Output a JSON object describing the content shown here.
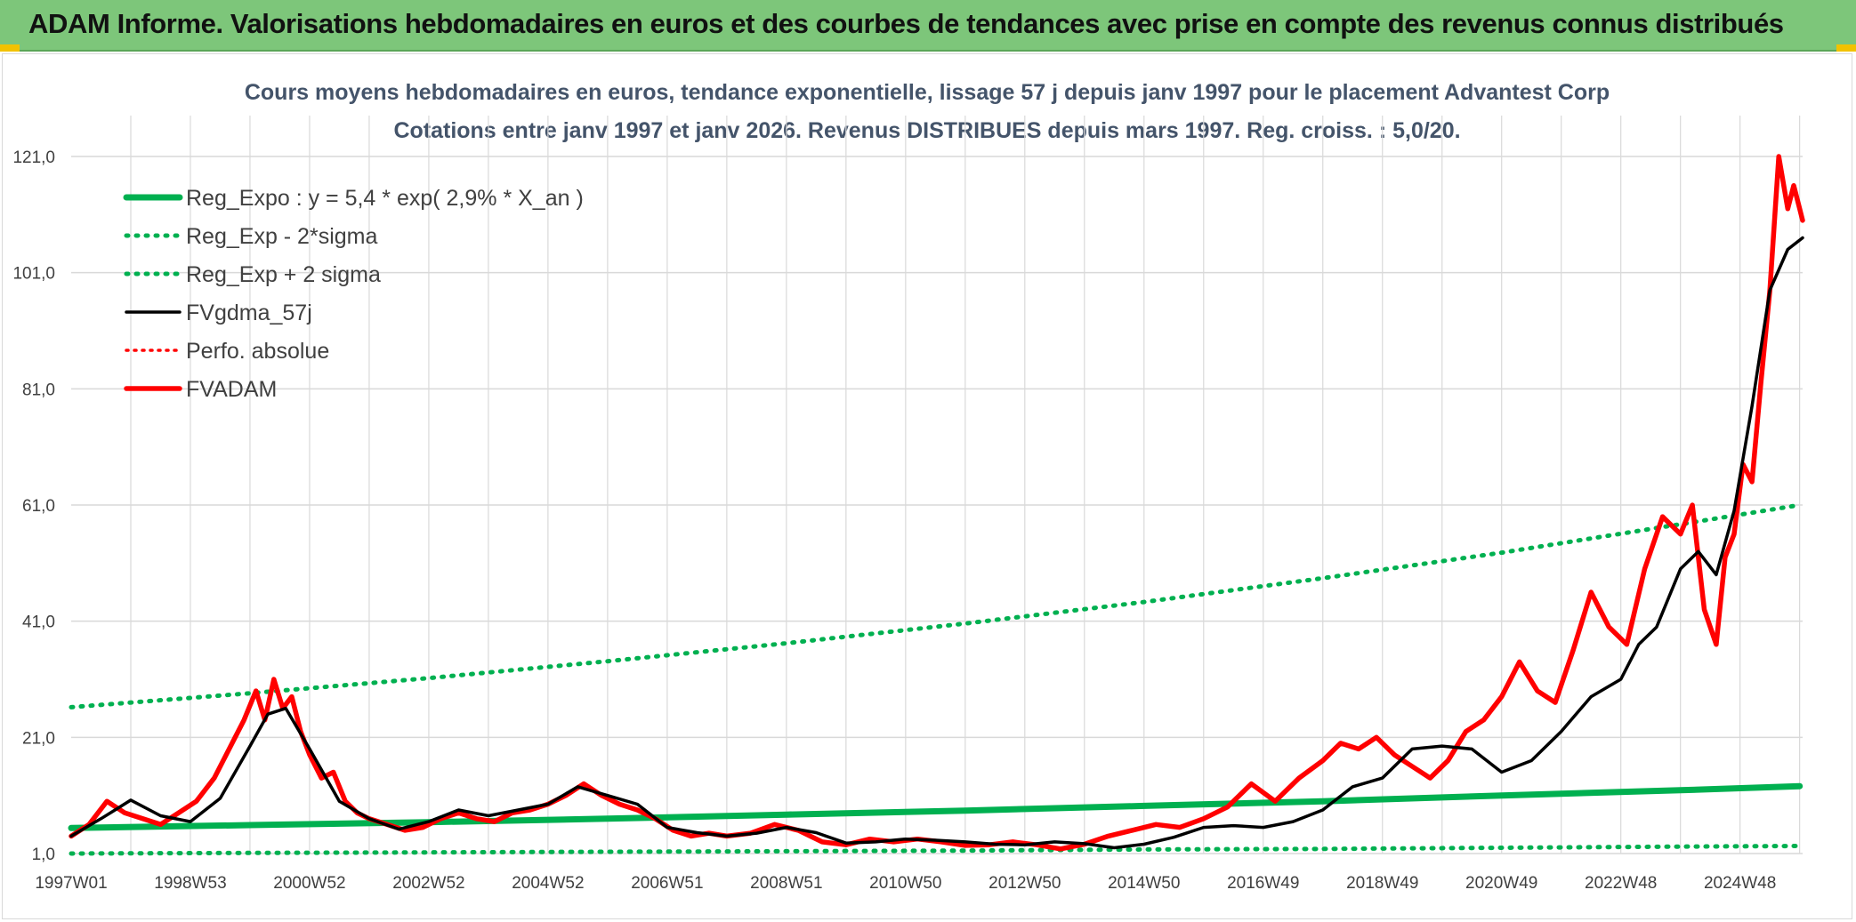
{
  "banner": {
    "title": "ADAM Informe. Valorisations hebdomadaires en euros et des courbes de tendances avec prise en compte des revenus connus distribués"
  },
  "colors": {
    "banner_bg": "#7dc67a",
    "reg_expo": "#00b050",
    "sigma_bands": "#00b050",
    "fvgdma": "#000000",
    "perfo": "#ff0000",
    "fvadam": "#ff0000",
    "grid": "#d9d9d9"
  },
  "chart_data": {
    "type": "line",
    "title": "Cours moyens hebdomadaires en euros, tendance exponentielle, lissage 57 j depuis janv 1997 pour le placement Advantest Corp",
    "subtitle": "Cotations entre janv 1997 et janv 2026. Revenus DISTRIBUES depuis mars 1997. Reg. croiss. : 5,0/20.",
    "legend_position": "top-left",
    "grid": true,
    "x_domain": [
      1997.0,
      2026.05
    ],
    "ylim": [
      1,
      121
    ],
    "y_ticks": [
      1,
      21,
      41,
      61,
      81,
      101,
      121
    ],
    "y_tick_labels": [
      "1,0",
      "21,0",
      "41,0",
      "61,0",
      "81,0",
      "101,0",
      "121,0"
    ],
    "x_ticks": [
      1997.0,
      1999.0,
      2001.0,
      2003.0,
      2005.0,
      2007.0,
      2009.0,
      2011.0,
      2013.0,
      2015.0,
      2017.0,
      2019.0,
      2021.0,
      2023.0,
      2025.0
    ],
    "x_tick_labels": [
      "1997W01",
      "1998W53",
      "2000W52",
      "2002W52",
      "2004W52",
      "2006W51",
      "2008W51",
      "2010W50",
      "2012W50",
      "2014W50",
      "2016W49",
      "2018W49",
      "2020W49",
      "2022W48",
      "2024W48"
    ],
    "series": [
      {
        "name": "Reg_Expo : y = 5,4 * exp( 2,9% *  X_an )",
        "style": "solid-thick",
        "x": [
          1997.0,
          2000.0,
          2003.0,
          2006.0,
          2009.0,
          2012.0,
          2015.0,
          2018.0,
          2021.0,
          2024.0,
          2026.0
        ],
        "y": [
          5.4,
          5.9,
          6.4,
          7.0,
          7.7,
          8.4,
          9.2,
          10.0,
          11.0,
          11.9,
          12.6
        ]
      },
      {
        "name": "Reg_Exp - 2*sigma",
        "style": "dotted",
        "x": [
          1997.0,
          2000.0,
          2003.0,
          2006.0,
          2009.0,
          2012.0,
          2015.0,
          2018.0,
          2021.0,
          2024.0,
          2026.0
        ],
        "y": [
          1.0,
          1.1,
          1.2,
          1.3,
          1.4,
          1.5,
          1.7,
          1.8,
          2.0,
          2.2,
          2.3
        ]
      },
      {
        "name": "Reg_Exp + 2 sigma",
        "style": "dotted",
        "x": [
          1997.0,
          2000.0,
          2003.0,
          2006.0,
          2009.0,
          2012.0,
          2015.0,
          2018.0,
          2021.0,
          2024.0,
          2026.0
        ],
        "y": [
          26.2,
          28.6,
          31.2,
          34.1,
          37.2,
          40.6,
          44.3,
          48.4,
          52.8,
          57.7,
          61.0
        ]
      },
      {
        "name": "FVgdma_57j",
        "style": "solid-medium",
        "x": [
          1997.0,
          1997.5,
          1998.0,
          1998.5,
          1999.0,
          1999.5,
          2000.0,
          2000.3,
          2000.6,
          2001.0,
          2001.5,
          2002.0,
          2002.5,
          2003.0,
          2003.5,
          2004.0,
          2004.5,
          2005.0,
          2005.5,
          2006.0,
          2006.5,
          2007.0,
          2007.5,
          2008.0,
          2008.5,
          2009.0,
          2009.5,
          2010.0,
          2010.5,
          2011.0,
          2011.5,
          2012.0,
          2012.5,
          2013.0,
          2013.5,
          2014.0,
          2014.5,
          2015.0,
          2015.5,
          2016.0,
          2016.5,
          2017.0,
          2017.5,
          2018.0,
          2018.5,
          2019.0,
          2019.5,
          2020.0,
          2020.5,
          2021.0,
          2021.5,
          2022.0,
          2022.5,
          2023.0,
          2023.3,
          2023.6,
          2024.0,
          2024.3,
          2024.6,
          2024.9,
          2025.2,
          2025.5,
          2025.8,
          2026.05
        ],
        "y": [
          4.0,
          7.0,
          10.2,
          7.5,
          6.5,
          10.5,
          19.5,
          25.0,
          26.0,
          19.0,
          10.0,
          7.0,
          5.2,
          6.5,
          8.5,
          7.5,
          8.5,
          9.5,
          12.5,
          11.0,
          9.5,
          5.5,
          4.6,
          4.0,
          4.5,
          5.5,
          4.6,
          2.8,
          3.0,
          3.5,
          3.3,
          3.0,
          2.6,
          2.5,
          3.0,
          2.7,
          2.0,
          2.6,
          3.8,
          5.5,
          5.8,
          5.5,
          6.5,
          8.5,
          12.5,
          14.0,
          19.0,
          19.5,
          19.0,
          15.0,
          17.0,
          22.0,
          28.0,
          31.0,
          37.0,
          40.0,
          50.0,
          53.0,
          49.0,
          60.0,
          78.0,
          98.0,
          105.0,
          107.0
        ]
      },
      {
        "name": "Perfo. absolue",
        "style": "dotted",
        "x": [],
        "y": []
      },
      {
        "name": "FVADAM",
        "style": "solid-thick",
        "x": [
          1997.0,
          1997.3,
          1997.6,
          1997.9,
          1998.2,
          1998.5,
          1998.8,
          1999.1,
          1999.4,
          1999.7,
          1999.9,
          2000.1,
          2000.25,
          2000.4,
          2000.55,
          2000.7,
          2000.85,
          2001.0,
          2001.2,
          2001.4,
          2001.6,
          2001.8,
          2002.0,
          2002.3,
          2002.6,
          2002.9,
          2003.2,
          2003.5,
          2003.8,
          2004.1,
          2004.4,
          2004.7,
          2005.0,
          2005.3,
          2005.6,
          2005.9,
          2006.2,
          2006.5,
          2006.8,
          2007.1,
          2007.4,
          2007.7,
          2008.0,
          2008.4,
          2008.8,
          2009.2,
          2009.6,
          2010.0,
          2010.4,
          2010.8,
          2011.2,
          2011.6,
          2012.0,
          2012.4,
          2012.8,
          2013.2,
          2013.6,
          2014.0,
          2014.4,
          2014.8,
          2015.2,
          2015.6,
          2016.0,
          2016.4,
          2016.8,
          2017.2,
          2017.6,
          2018.0,
          2018.3,
          2018.6,
          2018.9,
          2019.2,
          2019.5,
          2019.8,
          2020.1,
          2020.4,
          2020.7,
          2021.0,
          2021.3,
          2021.6,
          2021.9,
          2022.2,
          2022.5,
          2022.8,
          2023.1,
          2023.4,
          2023.7,
          2024.0,
          2024.2,
          2024.4,
          2024.6,
          2024.75,
          2024.9,
          2025.05,
          2025.2,
          2025.35,
          2025.5,
          2025.65,
          2025.8,
          2025.9,
          2026.0,
          2026.05
        ],
        "y": [
          4.0,
          6.0,
          10.0,
          8.0,
          7.0,
          6.0,
          8.0,
          10.0,
          14.0,
          20.0,
          24.0,
          29.0,
          24.0,
          31.0,
          26.0,
          28.0,
          22.0,
          18.0,
          14.0,
          15.0,
          10.0,
          8.0,
          7.0,
          6.0,
          5.0,
          5.5,
          7.0,
          8.0,
          7.0,
          6.5,
          8.0,
          8.5,
          9.5,
          11.0,
          13.0,
          11.0,
          9.5,
          8.5,
          7.0,
          5.0,
          4.0,
          4.5,
          4.0,
          4.5,
          6.0,
          5.0,
          3.0,
          2.5,
          3.5,
          3.0,
          3.5,
          3.0,
          2.4,
          2.5,
          3.0,
          2.5,
          1.8,
          2.6,
          4.0,
          5.0,
          6.0,
          5.5,
          7.0,
          9.0,
          13.0,
          10.0,
          14.0,
          17.0,
          20.0,
          19.0,
          21.0,
          18.0,
          16.0,
          14.0,
          17.0,
          22.0,
          24.0,
          28.0,
          34.0,
          29.0,
          27.0,
          36.0,
          46.0,
          40.0,
          37.0,
          50.0,
          59.0,
          56.0,
          61.0,
          43.0,
          37.0,
          52.0,
          56.0,
          68.0,
          65.0,
          82.0,
          98.0,
          121.0,
          112.0,
          116.0,
          112.0,
          110.0
        ]
      }
    ]
  }
}
